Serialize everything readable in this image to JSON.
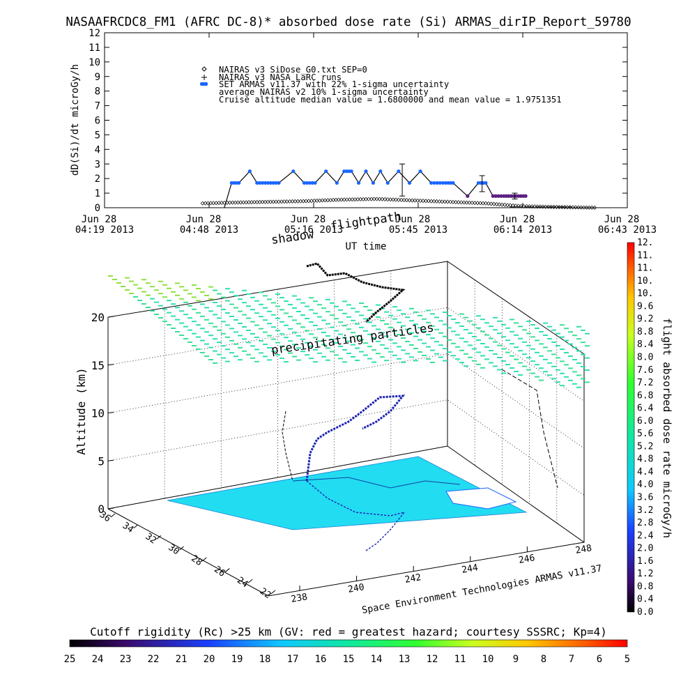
{
  "title": "NASAAFRCDC8_FM1 (AFRC DC-8)* absorbed dose rate (Si) ARMAS_dirIP_Report_59780",
  "top_plot": {
    "ylabel": "dD(Si)/dt microGy/h",
    "xlabel": "UT time",
    "yticks": [
      "0",
      "1",
      "2",
      "3",
      "4",
      "5",
      "6",
      "7",
      "8",
      "9",
      "10",
      "11",
      "12"
    ],
    "xticks": [
      {
        "date": "Jun 28",
        "time": "04:19 2013"
      },
      {
        "date": "Jun 28",
        "time": "04:48 2013"
      },
      {
        "date": "Jun 28",
        "time": "05:16 2013"
      },
      {
        "date": "Jun 28",
        "time": "05:45 2013"
      },
      {
        "date": "Jun 28",
        "time": "06:14 2013"
      },
      {
        "date": "Jun 28",
        "time": "06:43 2013"
      }
    ],
    "legend": [
      "NAIRAS v3 SiDose_G0.txt SEP=0",
      "NAIRAS v3 NASA LaRC runs",
      "SET ARMAS v11.37 with 22% 1-sigma uncertainty",
      "average NAIRAS v2 10% 1-sigma uncertainty",
      "Cruise altitude median value = 1.6800000 and mean value = 1.9751351"
    ]
  },
  "scene3d": {
    "ylabel": "Altitude (km)",
    "zticks": [
      "0",
      "5",
      "10",
      "15",
      "20"
    ],
    "lat_ticks": [
      "22",
      "24",
      "26",
      "28",
      "30",
      "32",
      "34",
      "36"
    ],
    "lon_ticks": [
      "238",
      "240",
      "242",
      "244",
      "246",
      "248"
    ],
    "credit": "Space Environment Technologies ARMAS v11.37",
    "ann_shadow": "shadow",
    "ann_flightpath": "flightpath",
    "ann_particles": "precipitating particles"
  },
  "colorbar_right": {
    "label": "flight absorbed dose rate microGy/h",
    "ticks": [
      "0.0",
      "0.4",
      "0.8",
      "1.2",
      "1.6",
      "2.0",
      "2.4",
      "2.8",
      "3.2",
      "3.6",
      "4.0",
      "4.4",
      "4.8",
      "5.2",
      "5.6",
      "6.0",
      "6.4",
      "6.8",
      "7.2",
      "7.6",
      "8.0",
      "8.4",
      "8.8",
      "9.2",
      "9.6",
      "10.",
      "10.",
      "11.",
      "11.",
      "12."
    ]
  },
  "colorbar_bottom": {
    "label": "Cutoff rigidity (Rc) >25 km (GV: red = greatest hazard; courtesy SSSRC; Kp=4)",
    "ticks": [
      "25",
      "24",
      "23",
      "22",
      "21",
      "20",
      "19",
      "18",
      "17",
      "16",
      "15",
      "14",
      "13",
      "12",
      "11",
      "10",
      "9",
      "8",
      "7",
      "6",
      "5"
    ]
  },
  "colors": {
    "armas": "#1a66ff",
    "ground": "#22dcf2",
    "grid": "#000000"
  },
  "chart_data": [
    {
      "type": "scatter",
      "title": "NASAAFRCDC8_FM1 (AFRC DC-8)* absorbed dose rate (Si) ARMAS_dirIP_Report_59780",
      "xlabel": "UT time",
      "ylabel": "dD(Si)/dt microGy/h",
      "ylim": [
        0,
        12
      ],
      "x_unit": "minutes after 04:19 UT",
      "xlim": [
        0,
        144
      ],
      "series": [
        {
          "name": "SET ARMAS v11.37 with 22% 1-sigma uncertainty",
          "x": [
            33,
            35,
            37,
            40,
            42,
            45,
            48,
            52,
            55,
            58,
            61,
            64,
            66,
            68,
            70,
            72,
            74,
            76,
            78,
            81,
            84,
            87,
            90,
            94,
            96,
            100,
            103,
            105,
            107,
            110,
            112,
            114,
            116
          ],
          "y": [
            0,
            1.7,
            1.7,
            2.5,
            1.7,
            1.7,
            1.7,
            2.5,
            1.7,
            1.7,
            2.5,
            1.7,
            2.5,
            2.5,
            1.7,
            2.5,
            1.7,
            2.5,
            1.7,
            2.5,
            1.7,
            2.5,
            1.7,
            1.7,
            1.7,
            0.8,
            1.7,
            1.7,
            0.8,
            0.8,
            0.8,
            0.8,
            0.8
          ]
        },
        {
          "name": "NAIRAS v3 SiDose_G0.txt SEP=0",
          "x": [
            27,
            35,
            45,
            55,
            65,
            75,
            85,
            95,
            105,
            115,
            125,
            135
          ],
          "y": [
            0.3,
            0.35,
            0.4,
            0.45,
            0.55,
            0.6,
            0.5,
            0.4,
            0.3,
            0.1,
            0.05,
            0
          ]
        }
      ]
    }
  ]
}
